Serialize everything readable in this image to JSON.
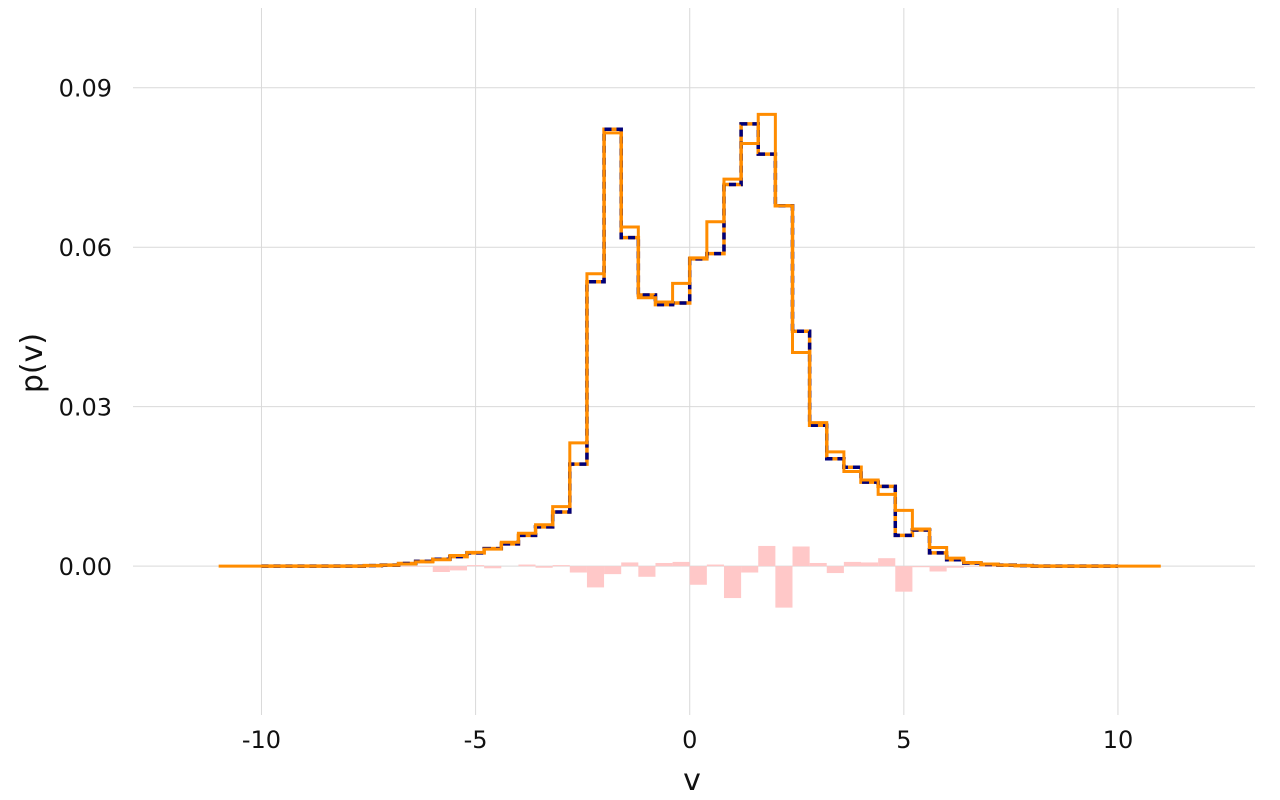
{
  "chart_data": {
    "type": "histogram-step",
    "title": "",
    "xlabel": "v",
    "ylabel": "p(v)",
    "xlim": [
      -13,
      13.2
    ],
    "ylim": [
      -0.028,
      0.105
    ],
    "xticks": [
      -10,
      -5,
      0,
      5,
      10
    ],
    "xtick_labels": [
      "-10",
      "-5",
      "0",
      "5",
      "10"
    ],
    "yticks": [
      0.0,
      0.03,
      0.06,
      0.09
    ],
    "ytick_labels": [
      "0.00",
      "0.03",
      "0.06",
      "0.09"
    ],
    "grid": true,
    "legend": "none",
    "bin_edges": [
      -10.0,
      -9.6,
      -9.2,
      -8.8,
      -8.4,
      -8.0,
      -7.6,
      -7.2,
      -6.8,
      -6.4,
      -6.0,
      -5.6,
      -5.2,
      -4.8,
      -4.4,
      -4.0,
      -3.6,
      -3.2,
      -2.8,
      -2.4,
      -2.0,
      -1.6,
      -1.2,
      -0.8,
      -0.4,
      0.0,
      0.4,
      0.8,
      1.2,
      1.6,
      2.0,
      2.4,
      2.8,
      3.2,
      3.6,
      4.0,
      4.4,
      4.8,
      5.2,
      5.6,
      6.0,
      6.4,
      6.8,
      7.2,
      7.6,
      8.0,
      8.4,
      8.8,
      9.2,
      9.6,
      10.0
    ],
    "series": [
      {
        "style": "solid",
        "color": "#ff8c00",
        "extend_to": [
          -11.0,
          11.0
        ],
        "values": [
          0.0,
          0.0,
          0.0,
          0.0,
          0.0,
          0.0,
          0.0001,
          0.0002,
          0.0004,
          0.0008,
          0.0012,
          0.002,
          0.0026,
          0.0032,
          0.0045,
          0.0062,
          0.0078,
          0.0112,
          0.0232,
          0.055,
          0.0815,
          0.0638,
          0.0505,
          0.0497,
          0.0532,
          0.058,
          0.0648,
          0.0728,
          0.0795,
          0.085,
          0.0678,
          0.0402,
          0.027,
          0.0215,
          0.0178,
          0.0162,
          0.0135,
          0.0105,
          0.007,
          0.0035,
          0.0015,
          0.0007,
          0.0004,
          0.0002,
          0.0001,
          0.0,
          0.0,
          0.0,
          0.0,
          0.0
        ]
      },
      {
        "style": "dashed",
        "color": "#ff8c00",
        "dash_color": "#00007a",
        "values": [
          0.0,
          0.0,
          0.0,
          0.0,
          0.0,
          0.0,
          0.0001,
          0.0002,
          0.0005,
          0.0009,
          0.0013,
          0.0018,
          0.0025,
          0.0033,
          0.0042,
          0.0058,
          0.0074,
          0.0102,
          0.0192,
          0.0535,
          0.0822,
          0.0618,
          0.051,
          0.0492,
          0.0495,
          0.0578,
          0.0588,
          0.0718,
          0.0832,
          0.0775,
          0.0678,
          0.0442,
          0.0265,
          0.0202,
          0.0186,
          0.0158,
          0.015,
          0.0058,
          0.0068,
          0.0025,
          0.0012,
          0.0006,
          0.0003,
          0.0002,
          0.0001,
          0.0,
          0.0,
          0.0,
          0.0,
          0.0
        ]
      },
      {
        "style": "bars",
        "color": "#ffc8c8",
        "values": [
          0.0,
          0.0,
          0.0,
          0.0,
          0.0,
          0.0,
          0.0,
          0.0,
          -0.0001,
          -0.0001,
          -0.0011,
          -0.0008,
          0.0002,
          -0.0004,
          0.0,
          0.0003,
          -0.0003,
          0.0002,
          -0.0012,
          -0.004,
          -0.0015,
          0.0007,
          -0.002,
          0.0006,
          0.0008,
          -0.0035,
          0.0003,
          -0.006,
          -0.0012,
          0.0038,
          -0.0078,
          0.0037,
          0.0006,
          -0.0013,
          0.0008,
          0.0007,
          0.0015,
          -0.0048,
          -0.0002,
          -0.001,
          -0.0003,
          -0.0001,
          -0.0001,
          0.0,
          0.0,
          0.0,
          0.0,
          0.0,
          0.0,
          0.0
        ]
      }
    ]
  }
}
